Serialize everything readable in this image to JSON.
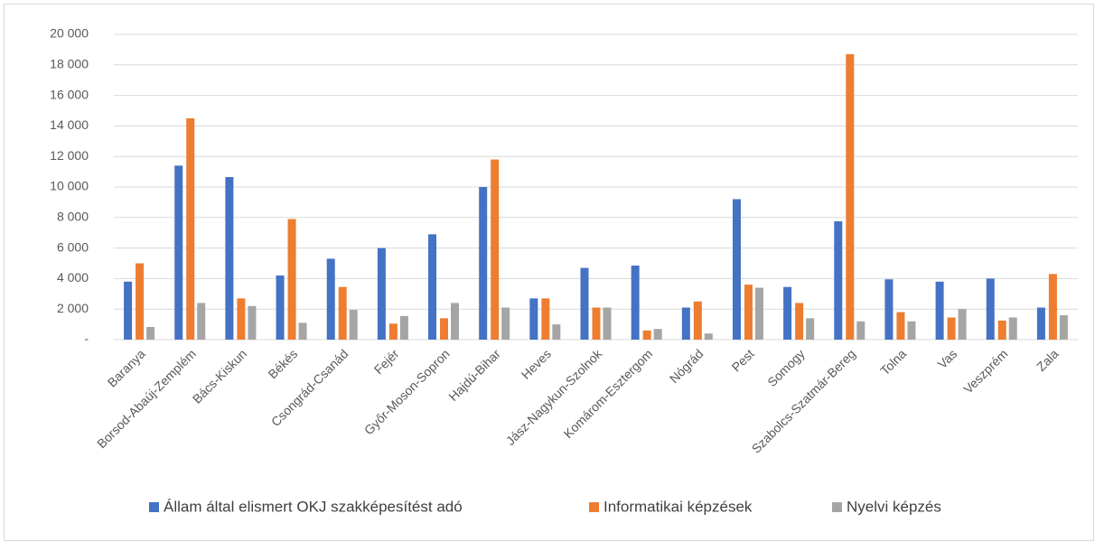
{
  "chart_data": {
    "type": "bar",
    "categories": [
      "Baranya",
      "Borsod-Abaúj-Zemplém",
      "Bács-Kiskun",
      "Békés",
      "Csongrád-Csanád",
      "Fejér",
      "Győr-Moson-Sopron",
      "Hajdú-Bihar",
      "Heves",
      "Jász-Nagykun-Szolnok",
      "Komárom-Esztergom",
      "Nógrád",
      "Pest",
      "Somogy",
      "Szabolcs-Szatmár-Bereg",
      "Tolna",
      "Vas",
      "Veszprém",
      "Zala"
    ],
    "series": [
      {
        "name": "Állam által elismert OKJ szakképesítést adó",
        "color": "#4472c4",
        "values": [
          3800,
          11400,
          10650,
          4200,
          5300,
          6000,
          6900,
          10000,
          2700,
          4700,
          4850,
          2100,
          9200,
          3450,
          7750,
          3950,
          3800,
          4000,
          2100
        ]
      },
      {
        "name": "Informatikai képzések",
        "color": "#ed7d31",
        "values": [
          5000,
          14500,
          2700,
          7900,
          3450,
          1050,
          1400,
          11800,
          2700,
          2100,
          600,
          2500,
          3600,
          2400,
          18700,
          1800,
          1450,
          1250,
          4300
        ]
      },
      {
        "name": "Nyelvi képzés",
        "color": "#a5a5a5",
        "values": [
          830,
          2400,
          2200,
          1100,
          1950,
          1550,
          2400,
          2100,
          1000,
          2100,
          700,
          400,
          3400,
          1400,
          1200,
          1200,
          2000,
          1450,
          1600
        ]
      }
    ],
    "ylim": [
      0,
      20000
    ],
    "yticks": [
      {
        "value": 0,
        "label": "-"
      },
      {
        "value": 2000,
        "label": "2 000"
      },
      {
        "value": 4000,
        "label": "4 000"
      },
      {
        "value": 6000,
        "label": "6 000"
      },
      {
        "value": 8000,
        "label": "8 000"
      },
      {
        "value": 10000,
        "label": "10 000"
      },
      {
        "value": 12000,
        "label": "12 000"
      },
      {
        "value": 14000,
        "label": "14 000"
      },
      {
        "value": 16000,
        "label": "16 000"
      },
      {
        "value": 18000,
        "label": "18 000"
      },
      {
        "value": 20000,
        "label": "20 000"
      }
    ],
    "grid": true,
    "legend": "bottom"
  }
}
